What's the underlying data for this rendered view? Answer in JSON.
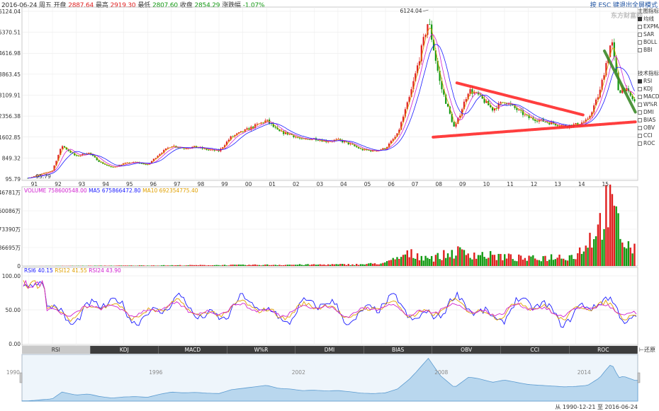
{
  "header": {
    "date": "2016-06-24 周五",
    "open_label": "开盘",
    "open": "2887.64",
    "high_label": "最高",
    "high": "2919.30",
    "low_label": "最低",
    "low": "2807.60",
    "close_label": "收盘",
    "close": "2854.29",
    "change_label": "涨跌幅",
    "change": "-1.07%"
  },
  "esc_hint": "按 ESC 键退出全屏模式",
  "watermark": "东方财富网",
  "overlay_panel": {
    "title": "主图指标",
    "items": [
      {
        "label": "均线",
        "checked": true
      },
      {
        "label": "EXPMA",
        "checked": false
      },
      {
        "label": "SAR",
        "checked": false
      },
      {
        "label": "BOLL",
        "checked": false
      },
      {
        "label": "BBI",
        "checked": false
      }
    ]
  },
  "tech_panel": {
    "title": "技术指标",
    "items": [
      {
        "label": "RSI",
        "checked": true
      },
      {
        "label": "KDJ",
        "checked": false
      },
      {
        "label": "MACD",
        "checked": false
      },
      {
        "label": "W%R",
        "checked": false
      },
      {
        "label": "DMI",
        "checked": false
      },
      {
        "label": "BIAS",
        "checked": false
      },
      {
        "label": "OBV",
        "checked": false
      },
      {
        "label": "CCI",
        "checked": false
      },
      {
        "label": "ROC",
        "checked": false
      }
    ]
  },
  "volume_legend": {
    "volume": "VOLUME 758600548.00",
    "ma5": "MA5 675866472.80",
    "ma10": "MA10 692354775.40"
  },
  "rsi_legend": {
    "rsi6": "RSI6 40.15",
    "rsi12": "RSI12 41.55",
    "rsi24": "RSI24 43.90"
  },
  "indicator_tabs": [
    "RSI",
    "KDJ",
    "MACD",
    "W%R",
    "DMI",
    "BIAS",
    "OBV",
    "CCI",
    "ROC"
  ],
  "active_tab": "RSI",
  "restore_label": "还原",
  "range_text": "从 1990-12-21 至 2016-06-24",
  "colors": {
    "up": "#e02020",
    "down": "#139a13",
    "ma5": "#1a1aff",
    "ma10": "#e0a000",
    "ma20": "#d020d0",
    "trend_red": "#ff2a2a",
    "trend_green": "#3d8a2a"
  },
  "chart_data": [
    {
      "type": "candlestick",
      "title": "",
      "x_tick_labels": [
        "91",
        "92",
        "93",
        "94",
        "95",
        "96",
        "97",
        "98",
        "99",
        "00",
        "01",
        "02",
        "03",
        "04",
        "05",
        "06",
        "07",
        "08",
        "09",
        "10",
        "11",
        "12",
        "13",
        "14",
        "15"
      ],
      "y_tick_labels": [
        "6124.04",
        "5370.51",
        "4616.98",
        "3863.45",
        "3109.91",
        "2356.38",
        "1602.85",
        "849.32",
        "95.79"
      ],
      "ylim": [
        95.79,
        6124.04
      ],
      "annotations": [
        "6124.04",
        "95.79"
      ],
      "series": [
        {
          "name": "Close",
          "x": [
            1991,
            1992,
            1992.4,
            1993,
            1993.5,
            1994,
            1994.5,
            1995,
            1995.5,
            1996,
            1996.5,
            1997,
            1997.5,
            1998,
            1998.5,
            1999,
            1999.5,
            2000,
            2000.5,
            2001,
            2001.5,
            2002,
            2002.5,
            2003,
            2003.5,
            2004,
            2004.5,
            2005,
            2005.5,
            2006,
            2006.5,
            2007,
            2007.3,
            2007.8,
            2008.3,
            2008.9,
            2009.5,
            2009.9,
            2010.5,
            2011,
            2011.5,
            2012,
            2012.5,
            2013,
            2013.5,
            2014,
            2014.5,
            2015,
            2015.2,
            2015.5,
            2015.8,
            2016,
            2016.48
          ],
          "y": [
            130,
            400,
            1300,
            900,
            1050,
            700,
            500,
            650,
            700,
            600,
            1000,
            1300,
            1200,
            1250,
            1150,
            1100,
            1600,
            1800,
            2000,
            2200,
            1800,
            1700,
            1500,
            1550,
            1450,
            1500,
            1350,
            1150,
            1100,
            1200,
            1700,
            3000,
            4000,
            5800,
            3500,
            1900,
            3300,
            3100,
            2600,
            2900,
            2600,
            2300,
            2200,
            2100,
            2000,
            2050,
            2200,
            3200,
            4000,
            5100,
            3200,
            3400,
            2854.29
          ]
        }
      ],
      "trendlines": [
        {
          "color": "red",
          "from": [
            2009.0,
            3550
          ],
          "to": [
            2014.3,
            2400
          ]
        },
        {
          "color": "red",
          "from": [
            2008.0,
            1600
          ],
          "to": [
            2016.5,
            2150
          ]
        },
        {
          "color": "green",
          "from": [
            2015.2,
            4700
          ],
          "to": [
            2016.5,
            2500
          ]
        }
      ]
    },
    {
      "type": "bar",
      "title": "VOLUME",
      "y_tick_labels": [
        "346781万",
        "260086万",
        "173390万",
        "86695万",
        "0"
      ],
      "ylim": [
        0,
        346781
      ],
      "series": [
        {
          "name": "VOLUME",
          "x": [
            1991,
            1995,
            2000,
            2005,
            2006,
            2007,
            2008,
            2009,
            2010,
            2011,
            2012,
            2013,
            2014,
            2015,
            2015.3,
            2015.6,
            2016,
            2016.48
          ],
          "y": [
            100,
            2000,
            5000,
            8000,
            15000,
            60000,
            40000,
            70000,
            55000,
            45000,
            35000,
            45000,
            50000,
            200000,
            300000,
            260000,
            120000,
            75860
          ]
        }
      ]
    },
    {
      "type": "line",
      "title": "RSI",
      "y_tick_labels": [
        "100.00",
        "50.00",
        "0.00"
      ],
      "ylim": [
        0,
        100
      ],
      "series": [
        {
          "name": "RSI6",
          "last": 40.15
        },
        {
          "name": "RSI12",
          "last": 41.55
        },
        {
          "name": "RSI24",
          "last": 43.9
        }
      ]
    },
    {
      "type": "area",
      "title": "",
      "x_tick_labels": [
        "1990",
        "1996",
        "2002",
        "2008",
        "2014"
      ]
    }
  ]
}
